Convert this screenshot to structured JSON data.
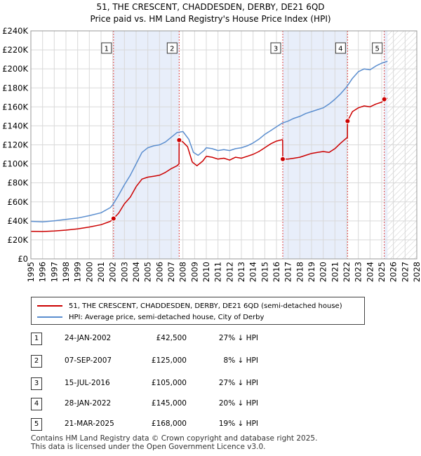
{
  "title": "51, THE CRESCENT, CHADDESDEN, DERBY, DE21 6QD",
  "subtitle": "Price paid vs. HM Land Registry's House Price Index (HPI)",
  "chart_data": {
    "type": "line",
    "xlim": [
      1995,
      2028
    ],
    "ylim": [
      0,
      240000
    ],
    "x_ticks": [
      1995,
      1996,
      1997,
      1998,
      1999,
      2000,
      2001,
      2002,
      2003,
      2004,
      2005,
      2006,
      2007,
      2008,
      2009,
      2010,
      2011,
      2012,
      2013,
      2014,
      2015,
      2016,
      2017,
      2018,
      2019,
      2020,
      2021,
      2022,
      2023,
      2024,
      2025,
      2026,
      2027,
      2028
    ],
    "y_ticks": [
      {
        "value": 0,
        "label": "£0"
      },
      {
        "value": 20000,
        "label": "£20K"
      },
      {
        "value": 40000,
        "label": "£40K"
      },
      {
        "value": 60000,
        "label": "£60K"
      },
      {
        "value": 80000,
        "label": "£80K"
      },
      {
        "value": 100000,
        "label": "£100K"
      },
      {
        "value": 120000,
        "label": "£120K"
      },
      {
        "value": 140000,
        "label": "£140K"
      },
      {
        "value": 160000,
        "label": "£160K"
      },
      {
        "value": 180000,
        "label": "£180K"
      },
      {
        "value": 200000,
        "label": "£200K"
      },
      {
        "value": 220000,
        "label": "£220K"
      },
      {
        "value": 240000,
        "label": "£240K"
      }
    ],
    "grid": true,
    "shaded_periods": [
      [
        2002.07,
        2007.68
      ],
      [
        2016.54,
        2022.08
      ],
      [
        2025.22,
        2025.5
      ]
    ],
    "future_hatch_from": 2025.5,
    "series": [
      {
        "name": "51, THE CRESCENT, CHADDESDEN, DERBY, DE21 6QD (semi-detached house)",
        "color": "#cc0000",
        "points": [
          [
            1995,
            29000
          ],
          [
            1996,
            28800
          ],
          [
            1997,
            29400
          ],
          [
            1998,
            30300
          ],
          [
            1999,
            31500
          ],
          [
            2000,
            33500
          ],
          [
            2001,
            36000
          ],
          [
            2001.8,
            39500
          ],
          [
            2002.07,
            42500
          ],
          [
            2002.5,
            48000
          ],
          [
            2003,
            58000
          ],
          [
            2003.5,
            65000
          ],
          [
            2004,
            76000
          ],
          [
            2004.5,
            84000
          ],
          [
            2005,
            86000
          ],
          [
            2005.5,
            87000
          ],
          [
            2006,
            88000
          ],
          [
            2006.5,
            91000
          ],
          [
            2007,
            95000
          ],
          [
            2007.5,
            98000
          ],
          [
            2007.67,
            100000
          ],
          [
            2007.68,
            125000
          ],
          [
            2008,
            123000
          ],
          [
            2008.4,
            118000
          ],
          [
            2008.8,
            102000
          ],
          [
            2009.2,
            98000
          ],
          [
            2009.7,
            103000
          ],
          [
            2010,
            108000
          ],
          [
            2010.5,
            107000
          ],
          [
            2011,
            105000
          ],
          [
            2011.5,
            106000
          ],
          [
            2012,
            104000
          ],
          [
            2012.5,
            107000
          ],
          [
            2013,
            106000
          ],
          [
            2013.5,
            108000
          ],
          [
            2014,
            110000
          ],
          [
            2014.5,
            113000
          ],
          [
            2015,
            117000
          ],
          [
            2015.5,
            121000
          ],
          [
            2016,
            124000
          ],
          [
            2016.5,
            125500
          ],
          [
            2016.53,
            125000
          ],
          [
            2016.54,
            105000
          ],
          [
            2017,
            105000
          ],
          [
            2017.5,
            106000
          ],
          [
            2018,
            107000
          ],
          [
            2018.5,
            109000
          ],
          [
            2019,
            111000
          ],
          [
            2019.5,
            112000
          ],
          [
            2020,
            113000
          ],
          [
            2020.5,
            112000
          ],
          [
            2021,
            116000
          ],
          [
            2021.5,
            122000
          ],
          [
            2022.07,
            128000
          ],
          [
            2022.08,
            145000
          ],
          [
            2022.5,
            155000
          ],
          [
            2023,
            159000
          ],
          [
            2023.5,
            161000
          ],
          [
            2024,
            160000
          ],
          [
            2024.5,
            163000
          ],
          [
            2025,
            165000
          ],
          [
            2025.22,
            168000
          ],
          [
            2025.5,
            169000
          ]
        ]
      },
      {
        "name": "HPI: Average price, semi-detached house, City of Derby",
        "color": "#5b8ecf",
        "points": [
          [
            1995,
            39500
          ],
          [
            1996,
            39000
          ],
          [
            1997,
            40000
          ],
          [
            1998,
            41500
          ],
          [
            1999,
            43000
          ],
          [
            2000,
            45500
          ],
          [
            2001,
            48500
          ],
          [
            2001.8,
            54000
          ],
          [
            2002,
            57000
          ],
          [
            2002.5,
            67000
          ],
          [
            2003,
            78000
          ],
          [
            2003.5,
            88000
          ],
          [
            2004,
            100000
          ],
          [
            2004.5,
            112000
          ],
          [
            2005,
            117000
          ],
          [
            2005.5,
            119000
          ],
          [
            2006,
            120000
          ],
          [
            2006.5,
            123000
          ],
          [
            2007,
            128000
          ],
          [
            2007.5,
            133000
          ],
          [
            2008,
            134000
          ],
          [
            2008.5,
            126000
          ],
          [
            2008.9,
            112000
          ],
          [
            2009.3,
            109000
          ],
          [
            2009.8,
            114000
          ],
          [
            2010,
            117000
          ],
          [
            2010.5,
            116000
          ],
          [
            2011,
            114000
          ],
          [
            2011.5,
            115000
          ],
          [
            2012,
            114000
          ],
          [
            2012.5,
            116000
          ],
          [
            2013,
            117000
          ],
          [
            2013.5,
            119000
          ],
          [
            2014,
            122000
          ],
          [
            2014.5,
            126000
          ],
          [
            2015,
            131000
          ],
          [
            2015.5,
            135000
          ],
          [
            2016,
            139000
          ],
          [
            2016.5,
            143000
          ],
          [
            2017,
            145000
          ],
          [
            2017.5,
            148000
          ],
          [
            2018,
            150000
          ],
          [
            2018.5,
            153000
          ],
          [
            2019,
            155000
          ],
          [
            2019.5,
            157000
          ],
          [
            2020,
            159000
          ],
          [
            2020.5,
            163000
          ],
          [
            2021,
            168000
          ],
          [
            2021.5,
            174000
          ],
          [
            2022,
            181000
          ],
          [
            2022.5,
            190000
          ],
          [
            2023,
            197000
          ],
          [
            2023.5,
            200000
          ],
          [
            2024,
            199000
          ],
          [
            2024.5,
            203000
          ],
          [
            2025,
            206000
          ],
          [
            2025.5,
            208000
          ]
        ]
      }
    ],
    "sales": [
      {
        "label": "1",
        "x": 2002.07,
        "y": 42500
      },
      {
        "label": "2",
        "x": 2007.68,
        "y": 125000
      },
      {
        "label": "3",
        "x": 2016.54,
        "y": 105000
      },
      {
        "label": "4",
        "x": 2022.08,
        "y": 145000
      },
      {
        "label": "5",
        "x": 2025.22,
        "y": 168000
      }
    ]
  },
  "legend": {
    "items": [
      {
        "label": "51, THE CRESCENT, CHADDESDEN, DERBY, DE21 6QD (semi-detached house)",
        "color": "#cc0000"
      },
      {
        "label": "HPI: Average price, semi-detached house, City of Derby",
        "color": "#5b8ecf"
      }
    ]
  },
  "transactions": [
    {
      "num": "1",
      "date": "24-JAN-2002",
      "price": "£42,500",
      "hpi": "27% ↓ HPI"
    },
    {
      "num": "2",
      "date": "07-SEP-2007",
      "price": "£125,000",
      "hpi": "8% ↓ HPI"
    },
    {
      "num": "3",
      "date": "15-JUL-2016",
      "price": "£105,000",
      "hpi": "27% ↓ HPI"
    },
    {
      "num": "4",
      "date": "28-JAN-2022",
      "price": "£145,000",
      "hpi": "20% ↓ HPI"
    },
    {
      "num": "5",
      "date": "21-MAR-2025",
      "price": "£168,000",
      "hpi": "19% ↓ HPI"
    }
  ],
  "footer": {
    "line1": "Contains HM Land Registry data © Crown copyright and database right 2025.",
    "line2": "This data is licensed under the Open Government Licence v3.0."
  }
}
